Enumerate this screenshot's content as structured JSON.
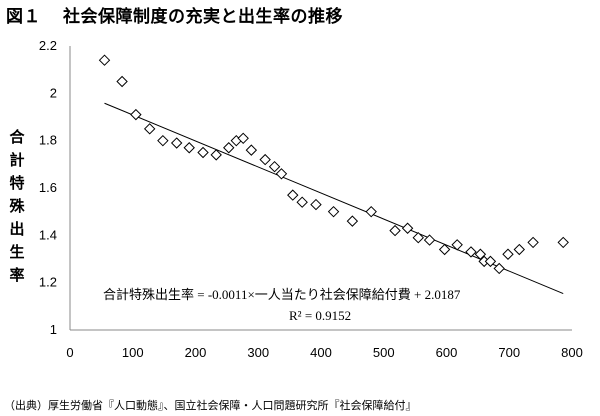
{
  "figure": {
    "number": "図１",
    "title": "社会保障制度の充実と出生率の推移",
    "source": "（出典）厚生労働省『人口動態』、国立社会保障・人口問題研究所『社会保障給付』"
  },
  "chart_data": {
    "type": "scatter",
    "ylabel": "合計特殊出生率",
    "xlabel": "",
    "xlim": [
      0,
      800
    ],
    "ylim": [
      1,
      2.2
    ],
    "x_ticks": [
      0,
      100,
      200,
      300,
      400,
      500,
      600,
      700,
      800
    ],
    "y_ticks": [
      1,
      1.2,
      1.4,
      1.6,
      1.8,
      2,
      2.2
    ],
    "marker": "diamond",
    "grid": false,
    "points": [
      [
        55,
        2.14
      ],
      [
        83,
        2.05
      ],
      [
        105,
        1.91
      ],
      [
        127,
        1.85
      ],
      [
        148,
        1.8
      ],
      [
        170,
        1.79
      ],
      [
        190,
        1.77
      ],
      [
        212,
        1.75
      ],
      [
        233,
        1.74
      ],
      [
        253,
        1.77
      ],
      [
        265,
        1.8
      ],
      [
        276,
        1.81
      ],
      [
        289,
        1.76
      ],
      [
        311,
        1.72
      ],
      [
        326,
        1.69
      ],
      [
        337,
        1.66
      ],
      [
        355,
        1.57
      ],
      [
        370,
        1.54
      ],
      [
        392,
        1.53
      ],
      [
        420,
        1.5
      ],
      [
        450,
        1.46
      ],
      [
        480,
        1.5
      ],
      [
        518,
        1.42
      ],
      [
        538,
        1.43
      ],
      [
        555,
        1.39
      ],
      [
        573,
        1.38
      ],
      [
        597,
        1.34
      ],
      [
        617,
        1.36
      ],
      [
        639,
        1.33
      ],
      [
        654,
        1.32
      ],
      [
        660,
        1.29
      ],
      [
        670,
        1.29
      ],
      [
        684,
        1.26
      ],
      [
        698,
        1.32
      ],
      [
        716,
        1.34
      ],
      [
        738,
        1.37
      ],
      [
        786,
        1.37
      ]
    ],
    "trendline": {
      "slope": -0.0011,
      "intercept": 2.0187,
      "x_range": [
        55,
        786
      ],
      "equation_lhs": "合計特殊出生率",
      "equation_rhs_coef": " = -0.0011×",
      "equation_var": "一人当たり社会保障給付費",
      "equation_const": " + 2.0187",
      "r_squared": "R² = 0.9152"
    },
    "colors": {
      "axis": "#888888",
      "marker": "#000000",
      "trend": "#000000"
    }
  }
}
